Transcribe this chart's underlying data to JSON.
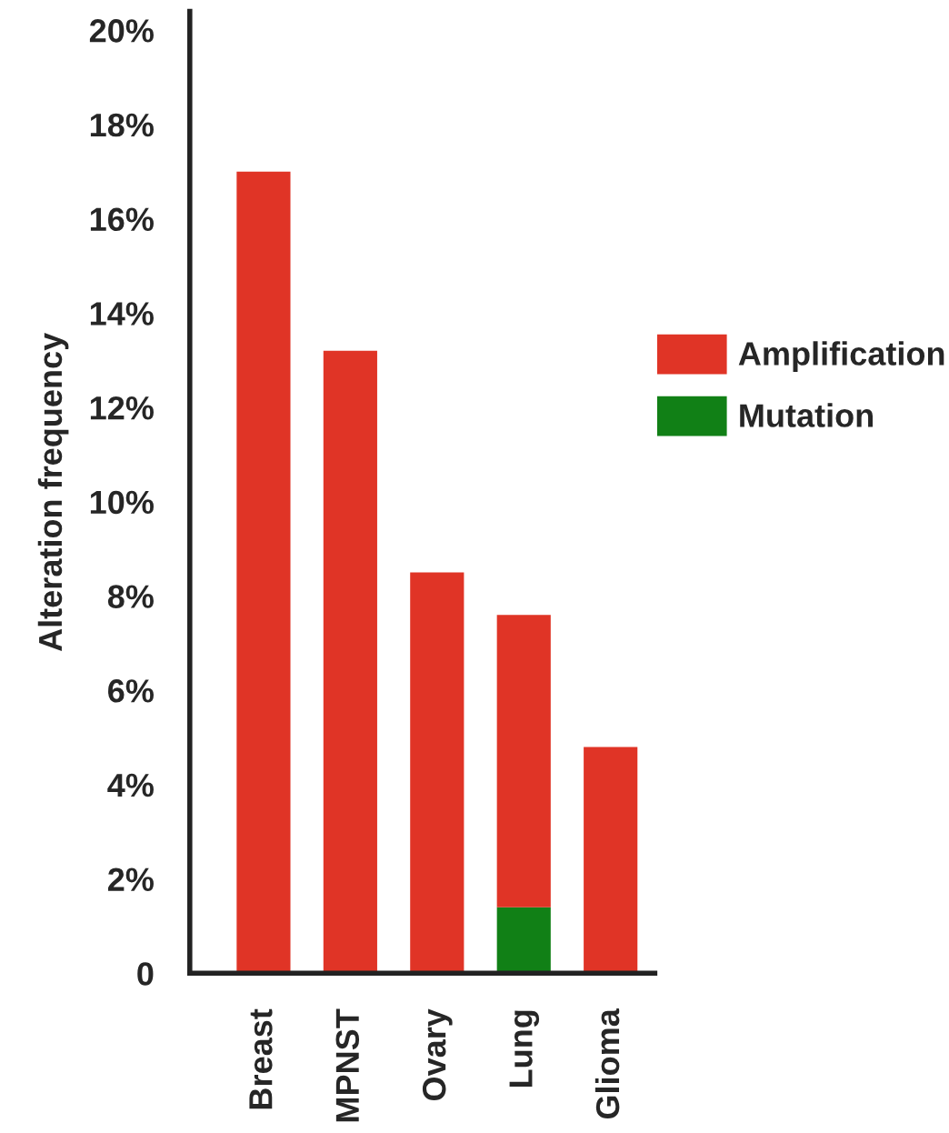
{
  "chart_data": {
    "type": "bar",
    "stacked": true,
    "ylabel": "Alteration frequency",
    "categories": [
      "Breast",
      "MPNST",
      "Ovary",
      "Lung",
      "Glioma"
    ],
    "series": [
      {
        "name": "Mutation",
        "color": "#118016",
        "values": [
          null,
          null,
          null,
          1.4,
          null
        ]
      },
      {
        "name": "Amplification",
        "color": "#e03426",
        "values": [
          17.0,
          13.2,
          8.5,
          6.2,
          4.8
        ]
      }
    ],
    "ylim": [
      0,
      20.4
    ],
    "yticks": [
      0,
      {
        "value": 2,
        "label": "2%"
      },
      {
        "value": 4,
        "label": "4%"
      },
      {
        "value": 6,
        "label": "6%"
      },
      {
        "value": 8,
        "label": "8%"
      },
      {
        "value": 10,
        "label": "10%"
      },
      {
        "value": 12,
        "label": "12%"
      },
      {
        "value": 14,
        "label": "14%"
      },
      {
        "value": 16,
        "label": "16%"
      },
      {
        "value": 18,
        "label": "18%"
      },
      {
        "value": 20,
        "label": "20%"
      }
    ],
    "grid": false,
    "legend": "right"
  }
}
